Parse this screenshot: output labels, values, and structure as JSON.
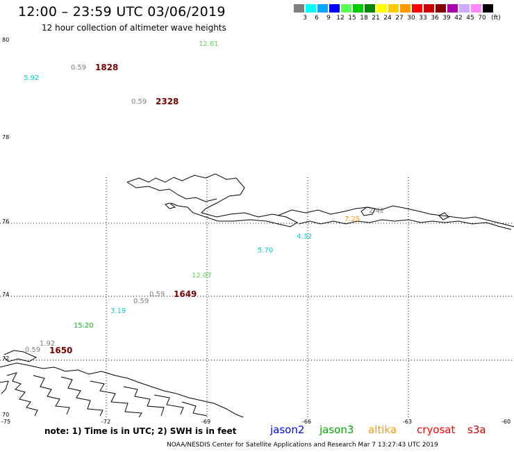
{
  "header": {
    "title": "12:00 – 23:59 UTC 03/06/2019",
    "subtitle": "12 hour collection of altimeter wave heights"
  },
  "legend": {
    "unit": "(ft)",
    "swatches": [
      {
        "color": "#7f7f7f",
        "label": "3"
      },
      {
        "color": "#00ffff",
        "label": "6"
      },
      {
        "color": "#00aaff",
        "label": "9"
      },
      {
        "color": "#0000ff",
        "label": "12"
      },
      {
        "color": "#55ff55",
        "label": "15"
      },
      {
        "color": "#00cc00",
        "label": "18"
      },
      {
        "color": "#008800",
        "label": "21"
      },
      {
        "color": "#ffff00",
        "label": "24"
      },
      {
        "color": "#ffcc00",
        "label": "27"
      },
      {
        "color": "#ff9900",
        "label": "30"
      },
      {
        "color": "#ff0000",
        "label": "33"
      },
      {
        "color": "#cc0000",
        "label": "36"
      },
      {
        "color": "#880000",
        "label": "39"
      },
      {
        "color": "#aa00aa",
        "label": "42"
      },
      {
        "color": "#ccaaff",
        "label": "45"
      },
      {
        "color": "#ff88ff",
        "label": "70"
      },
      {
        "color": "#000000",
        "label": ""
      }
    ]
  },
  "axes": {
    "lat_labels": [
      "80",
      "78",
      "76",
      "74",
      "72",
      "70"
    ],
    "lon_labels": [
      "-75",
      "-72",
      "-69",
      "-66",
      "-63",
      "-60"
    ]
  },
  "observations": [
    {
      "value": "12.61",
      "color": "#55dd55"
    },
    {
      "value": "0.59",
      "color": "#7f7f7f"
    },
    {
      "value": "1828",
      "color": "#7a0000"
    },
    {
      "value": "5.92",
      "color": "#00cccc"
    },
    {
      "value": "0.59",
      "color": "#7f7f7f"
    },
    {
      "value": "2328",
      "color": "#7a0000"
    },
    {
      "value": "2.42",
      "color": "#7f7f7f"
    },
    {
      "value": "7.25",
      "color": "#ff9900"
    },
    {
      "value": "4.32",
      "color": "#00cccc"
    },
    {
      "value": "5.70",
      "color": "#00cccc"
    },
    {
      "value": "12.07",
      "color": "#55dd55"
    },
    {
      "value": "0.59",
      "color": "#7f7f7f"
    },
    {
      "value": "1649",
      "color": "#7a0000"
    },
    {
      "value": "0.59",
      "color": "#7f7f7f"
    },
    {
      "value": "3.19",
      "color": "#00cccc"
    },
    {
      "value": "15.20",
      "color": "#00bb00"
    },
    {
      "value": "1.92",
      "color": "#7f7f7f"
    },
    {
      "value": "0.59",
      "color": "#7f7f7f"
    },
    {
      "value": "1650",
      "color": "#7a0000"
    }
  ],
  "footer": {
    "note": "note: 1) Time is in UTC; 2) SWH is in feet",
    "satellites": [
      {
        "name": "jason2",
        "color": "#0000ff"
      },
      {
        "name": "jason3",
        "color": "#00aa00"
      },
      {
        "name": "altika",
        "color": "#ff9900"
      },
      {
        "name": "cryosat",
        "color": "#ff0000"
      },
      {
        "name": "s3a",
        "color": "#cc0000"
      }
    ],
    "credit": "NOAA/NESDIS Center for Satellite Applications and Research    Mar  7 13:27:43 UTC 2019"
  }
}
